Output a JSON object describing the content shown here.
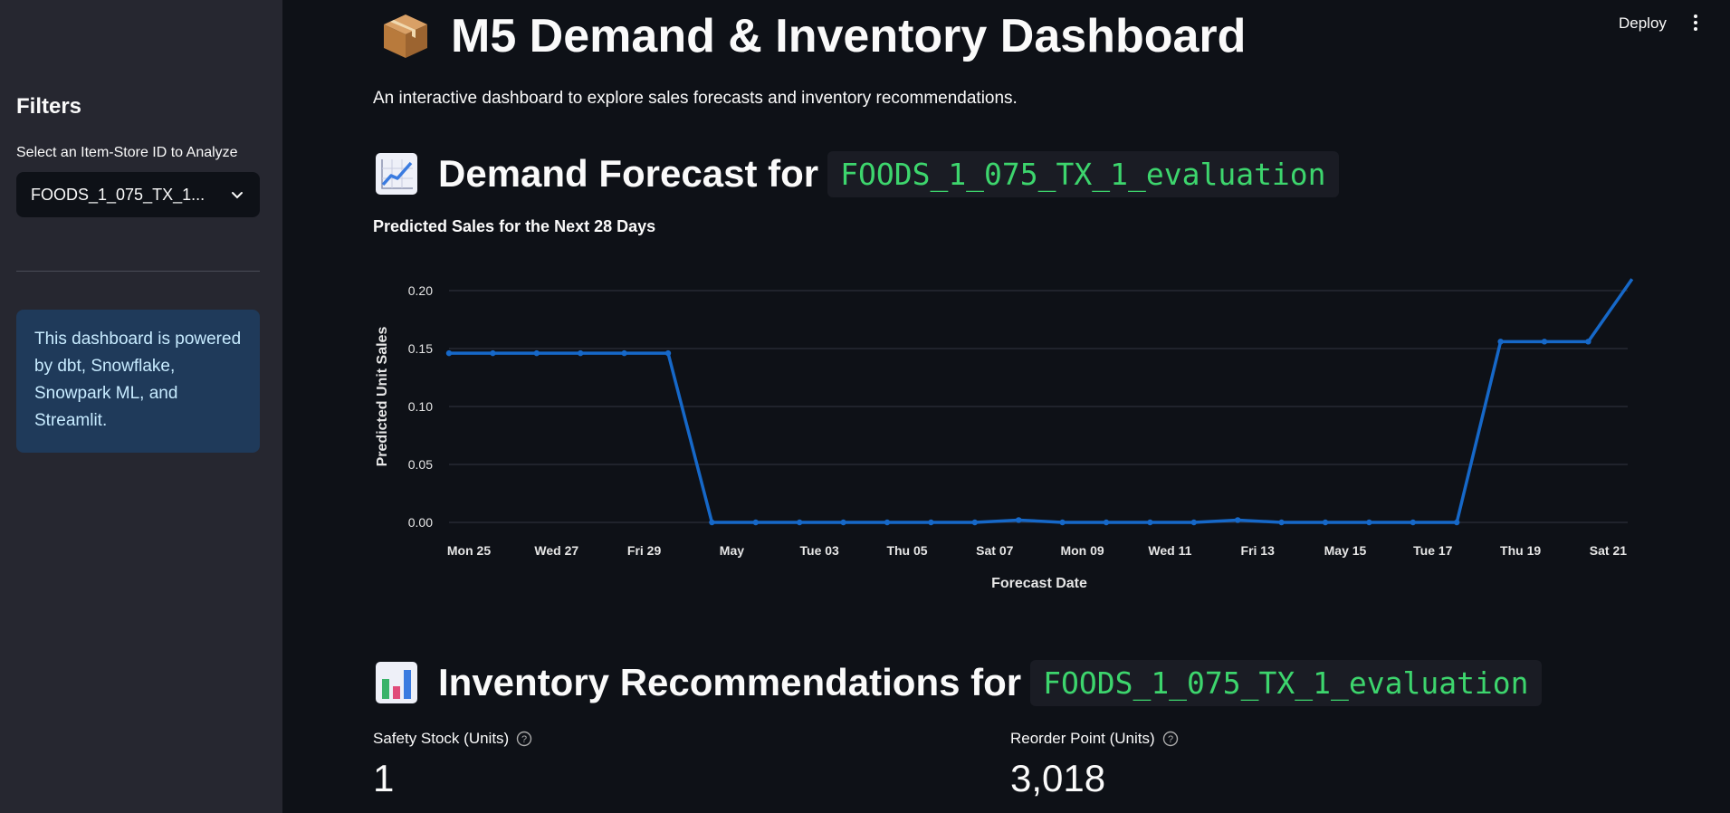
{
  "sidebar": {
    "title": "Filters",
    "select_label": "Select an Item-Store ID to Analyze",
    "select_value": "FOODS_1_075_TX_1...",
    "info": "This dashboard is powered by dbt, Snowflake, Snowpark ML, and Streamlit."
  },
  "header": {
    "deploy_label": "Deploy",
    "menu_icon": "kebab-menu-icon"
  },
  "main": {
    "title_icon": "package-icon",
    "title": "M5 Demand & Inventory Dashboard",
    "subtitle": "An interactive dashboard to explore sales forecasts and inventory recommendations.",
    "forecast_heading": {
      "icon": "chart-increasing-icon",
      "text": "Demand Forecast for",
      "code": "FOODS_1_075_TX_1_evaluation"
    },
    "chart_title": "Predicted Sales for the Next 28 Days",
    "inventory_heading": {
      "icon": "bar-chart-icon",
      "text": "Inventory Recommendations for",
      "code": "FOODS_1_075_TX_1_evaluation"
    },
    "metrics": [
      {
        "label": "Safety Stock (Units)",
        "value": "1"
      },
      {
        "label": "Reorder Point (Units)",
        "value": "3,018"
      }
    ]
  },
  "colors": {
    "line": "#1668c8",
    "code_text": "#3dd56d",
    "info_bg": "#1f3a5a",
    "sidebar_bg": "#262730",
    "page_bg": "#0e1117"
  },
  "chart_data": {
    "type": "line",
    "title": "Predicted Sales for the Next 28 Days",
    "xlabel": "Forecast Date",
    "ylabel": "Predicted Unit Sales",
    "ylim": [
      0,
      0.22
    ],
    "yticks": [
      "0.00",
      "0.05",
      "0.10",
      "0.15",
      "0.20"
    ],
    "x_tick_labels": [
      "Mon 25",
      "Wed 27",
      "Fri 29",
      "May",
      "Tue 03",
      "Thu 05",
      "Sat 07",
      "Mon 09",
      "Wed 11",
      "Fri 13",
      "May 15",
      "Tue 17",
      "Thu 19",
      "Sat 21"
    ],
    "x": [
      "2016-04-25",
      "2016-04-26",
      "2016-04-27",
      "2016-04-28",
      "2016-04-29",
      "2016-04-30",
      "2016-05-01",
      "2016-05-02",
      "2016-05-03",
      "2016-05-04",
      "2016-05-05",
      "2016-05-06",
      "2016-05-07",
      "2016-05-08",
      "2016-05-09",
      "2016-05-10",
      "2016-05-11",
      "2016-05-12",
      "2016-05-13",
      "2016-05-14",
      "2016-05-15",
      "2016-05-16",
      "2016-05-17",
      "2016-05-18",
      "2016-05-19",
      "2016-05-20",
      "2016-05-21",
      "2016-05-22"
    ],
    "values": [
      0.146,
      0.146,
      0.146,
      0.146,
      0.146,
      0.146,
      0.0,
      0.0,
      0.0,
      0.0,
      0.0,
      0.0,
      0.0,
      0.002,
      0.0,
      0.0,
      0.0,
      0.0,
      0.002,
      0.0,
      0.0,
      0.0,
      0.0,
      0.0,
      0.156,
      0.156,
      0.156,
      0.21
    ],
    "grid": true
  }
}
